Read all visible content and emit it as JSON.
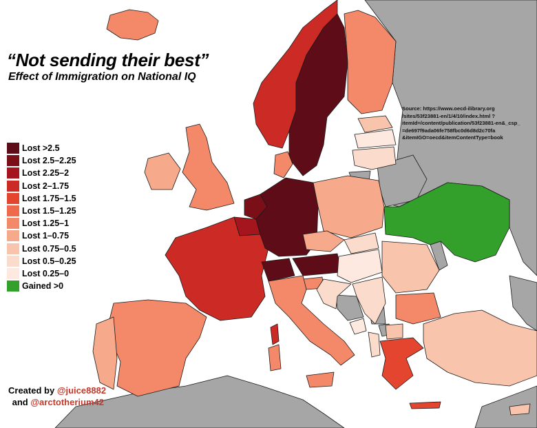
{
  "title": "“Not sending their best”",
  "subtitle": "Effect of Immigration on National IQ",
  "source": {
    "label": "Source:",
    "text": "https://www.oecd-ilibrary.org /sites/53f23881-en/1/4/10/index.html ?itemId=/content/publication/53f23881-en&_csp_ =de697f9ada06fe758fbc0d6d8d2c70fa &itemIGO=oecd&itemContentType=book"
  },
  "legend": [
    {
      "label": "Lost >2.5",
      "color": "#5e0c17"
    },
    {
      "label": "Lost 2.5–2.25",
      "color": "#7a0f18"
    },
    {
      "label": "Lost 2.25–2",
      "color": "#a5151d"
    },
    {
      "label": "Lost 2–1.75",
      "color": "#cc2a24"
    },
    {
      "label": "Lost 1.75–1.5",
      "color": "#e4452f"
    },
    {
      "label": "Lost 1.5–1.25",
      "color": "#ef6a4c"
    },
    {
      "label": "Lost 1.25–1",
      "color": "#f4896a"
    },
    {
      "label": "Lost 1–0.75",
      "color": "#f7a98c"
    },
    {
      "label": "Lost 0.75–0.5",
      "color": "#f9c4ac"
    },
    {
      "label": "Lost 0.5–0.25",
      "color": "#fbdccc"
    },
    {
      "label": "Lost 0.25–0",
      "color": "#fde9df"
    },
    {
      "label": "Gained >0",
      "color": "#33a02c"
    }
  ],
  "credits": {
    "created_by": "Created by",
    "handle1": "@juice8882",
    "and": "and",
    "handle2": "@arctotherium42"
  },
  "colors": {
    "no_data": "#a6a6a6",
    "background": "#ffffff"
  }
}
